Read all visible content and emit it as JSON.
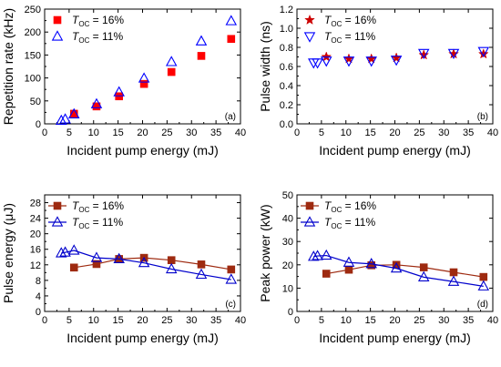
{
  "chart_data": [
    {
      "type": "scatter",
      "panel_label": "(a)",
      "xlabel": "Incident pump energy (mJ)",
      "ylabel": "Repetition rate (kHz)",
      "xlim": [
        0,
        40
      ],
      "ylim": [
        0,
        250
      ],
      "xticks": [
        0,
        5,
        10,
        15,
        20,
        25,
        30,
        35,
        40
      ],
      "yticks": [
        0,
        50,
        100,
        150,
        200,
        250
      ],
      "legend_position": "top-left",
      "series": [
        {
          "name_main": "T",
          "name_sub": "OC",
          "name_rest": " = 16%",
          "marker": "square",
          "color": "#ff0000",
          "filled": true,
          "x": [
            6.0,
            10.6,
            15.2,
            20.3,
            25.9,
            32.0,
            38.1
          ],
          "y": [
            22,
            38,
            60,
            87,
            113,
            148,
            185
          ]
        },
        {
          "name_main": "T",
          "name_sub": "OC",
          "name_rest": " = 11%",
          "marker": "triangle-up",
          "color": "#0000ff",
          "filled": false,
          "x": [
            3.4,
            4.2,
            6.0,
            10.6,
            15.2,
            20.3,
            25.9,
            32.0,
            38.1
          ],
          "y": [
            7,
            10,
            21,
            43,
            69,
            99,
            135,
            180,
            224
          ]
        }
      ]
    },
    {
      "type": "scatter",
      "panel_label": "(b)",
      "xlabel": "Incident pump energy (mJ)",
      "ylabel": "Pulse width (ns)",
      "xlim": [
        0,
        40
      ],
      "ylim": [
        0.0,
        1.2
      ],
      "xticks": [
        0,
        5,
        10,
        15,
        20,
        25,
        30,
        35,
        40
      ],
      "yticks": [
        0.0,
        0.2,
        0.4,
        0.6,
        0.8,
        1.0,
        1.2
      ],
      "ytick_labels": [
        "0.0",
        "0.2",
        "0.4",
        "0.6",
        "0.8",
        "1.0",
        "1.2"
      ],
      "legend_position": "top-left",
      "series": [
        {
          "name_main": "T",
          "name_sub": "OC",
          "name_rest": " = 16%",
          "marker": "star",
          "color": "#cc0000",
          "filled": true,
          "x": [
            6.0,
            10.6,
            15.2,
            20.3,
            25.9,
            32.0,
            38.1
          ],
          "y": [
            0.7,
            0.68,
            0.68,
            0.69,
            0.72,
            0.73,
            0.73
          ]
        },
        {
          "name_main": "T",
          "name_sub": "OC",
          "name_rest": " = 11%",
          "marker": "triangle-down",
          "color": "#0000ff",
          "filled": false,
          "x": [
            3.4,
            4.2,
            6.0,
            10.6,
            15.2,
            20.3,
            25.9,
            32.0,
            38.1
          ],
          "y": [
            0.64,
            0.64,
            0.66,
            0.66,
            0.66,
            0.67,
            0.74,
            0.74,
            0.76
          ]
        }
      ]
    },
    {
      "type": "line",
      "panel_label": "(c)",
      "xlabel": "Incident pump energy (mJ)",
      "ylabel": "Pulse energy (μJ)",
      "xlim": [
        0,
        40
      ],
      "ylim": [
        0,
        30
      ],
      "xticks": [
        0,
        5,
        10,
        15,
        20,
        25,
        30,
        35,
        40
      ],
      "yticks": [
        0,
        4,
        8,
        12,
        16,
        20,
        24,
        28
      ],
      "legend_position": "top-left",
      "series": [
        {
          "name_main": "T",
          "name_sub": "OC",
          "name_rest": " = 16%",
          "marker": "square",
          "color": "#9e2a10",
          "filled": true,
          "x": [
            6.0,
            10.6,
            15.2,
            20.3,
            25.9,
            32.0,
            38.1
          ],
          "y": [
            11.3,
            12.2,
            13.5,
            13.8,
            13.2,
            12.1,
            10.8
          ]
        },
        {
          "name_main": "T",
          "name_sub": "OC",
          "name_rest": " = 11%",
          "marker": "triangle-up",
          "color": "#0000cc",
          "filled": false,
          "x": [
            3.4,
            4.2,
            6.0,
            10.6,
            15.2,
            20.3,
            25.9,
            32.0,
            38.1
          ],
          "y": [
            15.0,
            15.2,
            15.7,
            13.8,
            13.5,
            12.5,
            10.9,
            9.5,
            8.2
          ]
        }
      ]
    },
    {
      "type": "line",
      "panel_label": "(d)",
      "xlabel": "Incident pump energy (mJ)",
      "ylabel": "Peak power (kW)",
      "xlim": [
        0,
        40
      ],
      "ylim": [
        0,
        50
      ],
      "xticks": [
        0,
        5,
        10,
        15,
        20,
        25,
        30,
        35,
        40
      ],
      "yticks": [
        0,
        10,
        20,
        30,
        40,
        50
      ],
      "legend_position": "top-left",
      "series": [
        {
          "name_main": "T",
          "name_sub": "OC",
          "name_rest": " = 16%",
          "marker": "square",
          "color": "#9e2a10",
          "filled": true,
          "x": [
            6.0,
            10.6,
            15.2,
            20.3,
            25.9,
            32.0,
            38.1
          ],
          "y": [
            16.2,
            17.9,
            19.8,
            20.0,
            18.9,
            16.8,
            14.8
          ]
        },
        {
          "name_main": "T",
          "name_sub": "OC",
          "name_rest": " = 11%",
          "marker": "triangle-up",
          "color": "#0000cc",
          "filled": false,
          "x": [
            3.4,
            4.2,
            6.0,
            10.6,
            15.2,
            20.3,
            25.9,
            32.0,
            38.1
          ],
          "y": [
            23.5,
            23.8,
            24.0,
            21.0,
            20.4,
            18.5,
            14.7,
            12.8,
            10.8
          ]
        }
      ]
    }
  ]
}
